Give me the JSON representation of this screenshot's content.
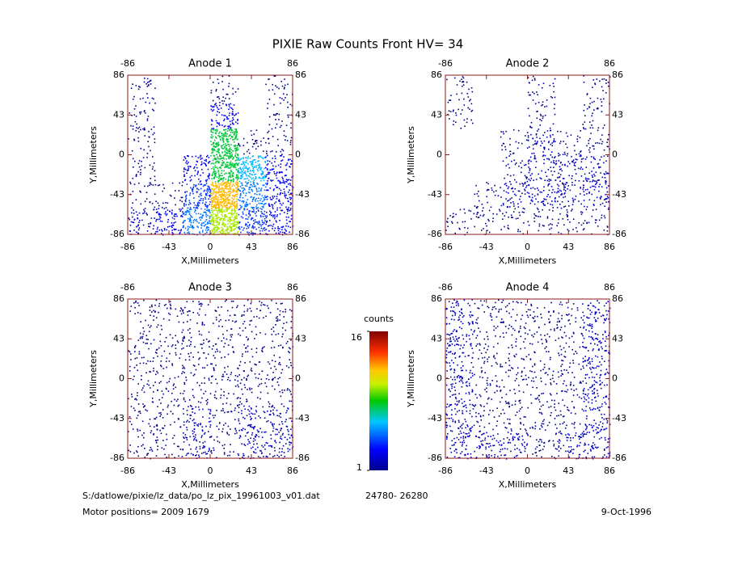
{
  "title": "PIXIE Raw Counts Front HV= 34",
  "chart_data": [
    {
      "type": "heatmap",
      "title": "Anode 1",
      "xlabel": "X,Millimeters",
      "ylabel": "Y,Millimeters",
      "xlim": [
        -86,
        86
      ],
      "ylim": [
        -86,
        86
      ],
      "xticks": [
        -86,
        -43,
        0,
        43,
        86
      ],
      "yticks": [
        -86,
        -43,
        0,
        43,
        86
      ],
      "values": [
        [
          1,
          0,
          0,
          1,
          0,
          1
        ],
        [
          1,
          0,
          0,
          3,
          0,
          1
        ],
        [
          1,
          0,
          0,
          8,
          1,
          1
        ],
        [
          1,
          0,
          3,
          8,
          6,
          3
        ],
        [
          1,
          1,
          4,
          12,
          5,
          3
        ],
        [
          2,
          3,
          5,
          10,
          4,
          3
        ]
      ]
    },
    {
      "type": "heatmap",
      "title": "Anode 2",
      "xlabel": "X,Millimeters",
      "ylabel": "Y,Millimeters",
      "xlim": [
        -86,
        86
      ],
      "ylim": [
        -86,
        86
      ],
      "xticks": [
        -86,
        -43,
        0,
        43,
        86
      ],
      "yticks": [
        -86,
        -43,
        0,
        43,
        86
      ],
      "values": [
        [
          1,
          0,
          0,
          1,
          0,
          1
        ],
        [
          1,
          0,
          0,
          1,
          0,
          1
        ],
        [
          0,
          0,
          1,
          2,
          1,
          1
        ],
        [
          0,
          0,
          1,
          2,
          2,
          2
        ],
        [
          0,
          1,
          2,
          2,
          2,
          2
        ],
        [
          1,
          1,
          1,
          1,
          1,
          1
        ]
      ]
    },
    {
      "type": "heatmap",
      "title": "Anode 3",
      "xlabel": "X,Millimeters",
      "ylabel": "Y,Millimeters",
      "xlim": [
        -86,
        86
      ],
      "ylim": [
        -86,
        86
      ],
      "xticks": [
        -86,
        -43,
        0,
        43,
        86
      ],
      "yticks": [
        -86,
        -43,
        0,
        43,
        86
      ],
      "values": [
        [
          1,
          1,
          1,
          1,
          1,
          1
        ],
        [
          1,
          1,
          1,
          1,
          1,
          1
        ],
        [
          1,
          1,
          1,
          1,
          1,
          1
        ],
        [
          1,
          1,
          1,
          1,
          1,
          1
        ],
        [
          1,
          1,
          2,
          1,
          2,
          2
        ],
        [
          1,
          1,
          2,
          1,
          2,
          2
        ]
      ]
    },
    {
      "type": "heatmap",
      "title": "Anode 4",
      "xlabel": "X,Millimeters",
      "ylabel": "Y,Millimeters",
      "xlim": [
        -86,
        86
      ],
      "ylim": [
        -86,
        86
      ],
      "xticks": [
        -86,
        -43,
        0,
        43,
        86
      ],
      "yticks": [
        -86,
        -43,
        0,
        43,
        86
      ],
      "values": [
        [
          2,
          1,
          1,
          1,
          1,
          2
        ],
        [
          2,
          1,
          1,
          1,
          1,
          2
        ],
        [
          2,
          1,
          1,
          1,
          1,
          2
        ],
        [
          2,
          1,
          1,
          1,
          1,
          2
        ],
        [
          2,
          1,
          1,
          1,
          1,
          2
        ],
        [
          2,
          2,
          2,
          1,
          2,
          2
        ]
      ]
    }
  ],
  "colorbar": {
    "label": "counts",
    "lim": [
      1,
      16
    ],
    "ticks": [
      1,
      16
    ]
  },
  "footer": {
    "file": "S:/datlowe/pixie/lz_data/po_lz_pix_19961003_v01.dat",
    "range": "24780- 26280",
    "motor": "Motor positions= 2009 1679",
    "date": "9-Oct-1996"
  }
}
